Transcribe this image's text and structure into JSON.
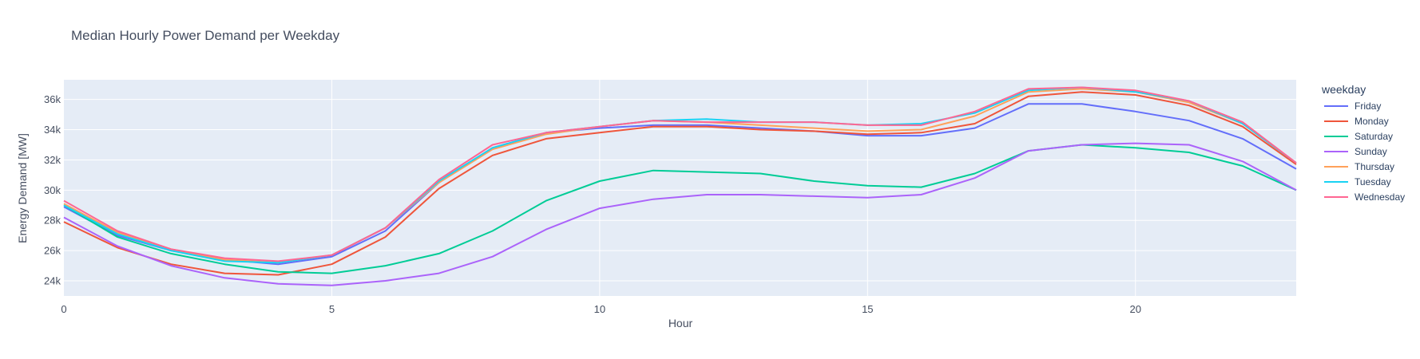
{
  "chart_data": {
    "type": "line",
    "title": "Median Hourly Power Demand per Weekday",
    "xlabel": "Hour",
    "ylabel": "Energy Demand [MW]",
    "xlim": [
      0,
      23
    ],
    "ylim": [
      23000,
      37300
    ],
    "x_ticks": [
      0,
      5,
      10,
      15,
      20
    ],
    "y_ticks": [
      24000,
      26000,
      28000,
      30000,
      32000,
      34000,
      36000
    ],
    "y_tick_labels": [
      "24k",
      "26k",
      "28k",
      "30k",
      "32k",
      "34k",
      "36k"
    ],
    "grid": true,
    "legend_title": "weekday",
    "legend_position": "right",
    "x": [
      0,
      1,
      2,
      3,
      4,
      5,
      6,
      7,
      8,
      9,
      10,
      11,
      12,
      13,
      14,
      15,
      16,
      17,
      18,
      19,
      20,
      21,
      22,
      23
    ],
    "series": [
      {
        "name": "Friday",
        "color": "#636efa",
        "values": [
          28900,
          27000,
          26000,
          25400,
          25100,
          25600,
          27300,
          30500,
          32800,
          33800,
          34100,
          34300,
          34300,
          34100,
          33900,
          33600,
          33600,
          34100,
          35700,
          35700,
          35200,
          34600,
          33400,
          31400
        ]
      },
      {
        "name": "Monday",
        "color": "#ef553b",
        "values": [
          27900,
          26200,
          25100,
          24500,
          24400,
          25100,
          26900,
          30100,
          32300,
          33400,
          33800,
          34200,
          34200,
          34000,
          33900,
          33700,
          33800,
          34400,
          36200,
          36500,
          36300,
          35600,
          34200,
          31700
        ]
      },
      {
        "name": "Saturday",
        "color": "#00cc96",
        "values": [
          29000,
          26900,
          25800,
          25100,
          24600,
          24500,
          25000,
          25800,
          27300,
          29300,
          30600,
          31300,
          31200,
          31100,
          30600,
          30300,
          30200,
          31100,
          32600,
          33000,
          32800,
          32500,
          31600,
          30000
        ]
      },
      {
        "name": "Sunday",
        "color": "#ab63fa",
        "values": [
          28200,
          26300,
          25000,
          24200,
          23800,
          23700,
          24000,
          24500,
          25600,
          27400,
          28800,
          29400,
          29700,
          29700,
          29600,
          29500,
          29700,
          30800,
          32600,
          33000,
          33100,
          33000,
          31900,
          30000
        ]
      },
      {
        "name": "Thursday",
        "color": "#ffa15a",
        "values": [
          29100,
          27200,
          26100,
          25400,
          25200,
          25700,
          27500,
          30500,
          32700,
          33700,
          34200,
          34600,
          34500,
          34300,
          34100,
          33900,
          34000,
          34900,
          36500,
          36700,
          36500,
          35800,
          34400,
          31800
        ]
      },
      {
        "name": "Tuesday",
        "color": "#19d3f3",
        "values": [
          29000,
          27100,
          26000,
          25300,
          25200,
          25700,
          27500,
          30600,
          32800,
          33800,
          34200,
          34600,
          34700,
          34500,
          34500,
          34300,
          34400,
          35100,
          36600,
          36800,
          36500,
          35900,
          34400,
          31800
        ]
      },
      {
        "name": "Wednesday",
        "color": "#ff6692",
        "values": [
          29300,
          27300,
          26100,
          25500,
          25300,
          25700,
          27500,
          30700,
          33000,
          33800,
          34200,
          34600,
          34500,
          34500,
          34500,
          34300,
          34300,
          35200,
          36700,
          36800,
          36600,
          35900,
          34500,
          31800
        ]
      }
    ]
  },
  "colors": {
    "plot_bg": "#e5ecf6",
    "grid": "#ffffff",
    "text": "#444d5f"
  }
}
